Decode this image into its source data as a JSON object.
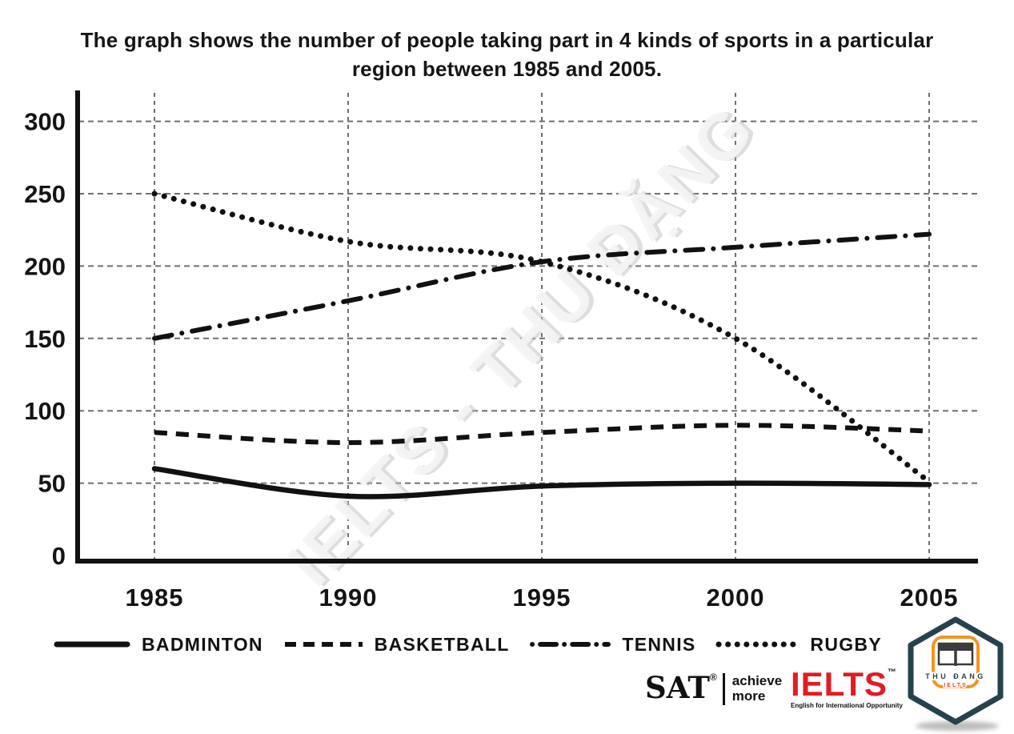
{
  "title": {
    "line1": "The graph shows the number of people taking part in 4 kinds of sports in a particular",
    "line2": "region between 1985 and 2005."
  },
  "watermark": "IELTS - THU ĐẶNG",
  "chart_data": {
    "type": "line",
    "title": "The graph shows the number of people taking part in 4 kinds of sports in a particular region between 1985 and 2005.",
    "categories": [
      "1985",
      "1990",
      "1995",
      "2000",
      "2005"
    ],
    "series": [
      {
        "name": "BADMINTON",
        "line_style": "solid",
        "values": [
          60,
          41,
          48,
          50,
          49
        ]
      },
      {
        "name": "BASKETBALL",
        "line_style": "dashed",
        "values": [
          85,
          78,
          85,
          90,
          86
        ]
      },
      {
        "name": "TENNIS",
        "line_style": "dashdot",
        "values": [
          150,
          176,
          203,
          213,
          222
        ]
      },
      {
        "name": "RUGBY",
        "line_style": "dotted",
        "values": [
          250,
          217,
          203,
          150,
          51
        ]
      }
    ],
    "yticks": [
      0,
      50,
      100,
      150,
      200,
      250,
      300
    ],
    "ylim": [
      0,
      320
    ],
    "grid": true,
    "series_color": "#111111",
    "gridline_color": "#6f6f6f",
    "legend_position": "bottom"
  },
  "footer": {
    "sat": {
      "name": "SAT",
      "reg_mark": "®",
      "tagline_line1": "achieve",
      "tagline_line2": "more"
    },
    "ielts": {
      "name": "IELTS",
      "tm_mark": "™",
      "tagline": "English for International Opportunity",
      "brand_color": "#e31b23"
    },
    "badge": {
      "line1": "THU ĐANG",
      "line2": "IELTS",
      "accent_color": "#f5941f",
      "outline_color": "#26424d"
    }
  }
}
